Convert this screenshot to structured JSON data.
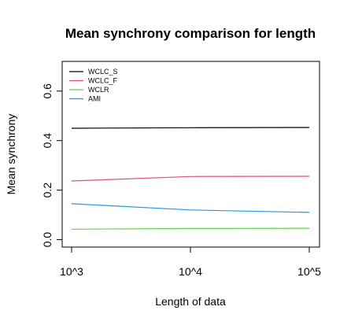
{
  "chart_data": {
    "type": "line",
    "title": "Mean synchrony comparison for length",
    "xlabel": "Length of data",
    "ylabel": "Mean synchrony",
    "categories": [
      "10^3",
      "10^4",
      "10^5"
    ],
    "ylim": [
      -0.03,
      0.72
    ],
    "yticks": [
      "0.0",
      "0.2",
      "0.4",
      "0.6"
    ],
    "grid": false,
    "legend_position": "top-left",
    "series": [
      {
        "name": "WCLC_S",
        "color": "#000000",
        "values": [
          0.45,
          0.452,
          0.453
        ]
      },
      {
        "name": "WCLC_F",
        "color": "#df536b",
        "values": [
          0.237,
          0.255,
          0.256
        ]
      },
      {
        "name": "WCLR",
        "color": "#61d04f",
        "values": [
          0.042,
          0.045,
          0.046
        ]
      },
      {
        "name": "AMI",
        "color": "#2297e6",
        "values": [
          0.145,
          0.12,
          0.11
        ]
      }
    ]
  }
}
